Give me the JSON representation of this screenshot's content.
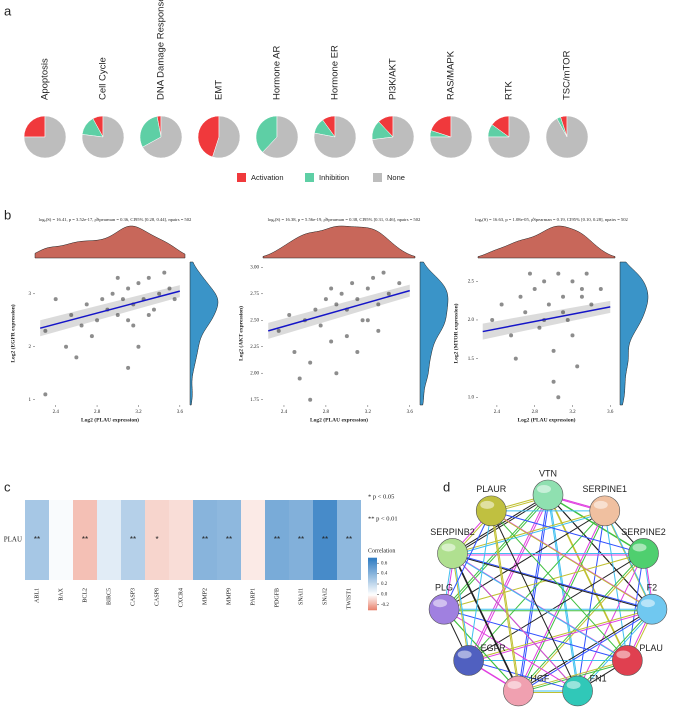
{
  "chart_data": [
    {
      "type": "pie",
      "panel_label": "a",
      "categories": [
        "Apoptosis",
        "Cell Cycle",
        "DNA Damage Response",
        "EMT",
        "Hormone AR",
        "Hormone ER",
        "PI3K/AKT",
        "RAS/MAPK",
        "RTK",
        "TSC/mTOR"
      ],
      "series": [
        {
          "name": "Activation",
          "color": "#f0393c",
          "values": [
            25,
            8,
            3,
            45,
            0,
            10,
            12,
            20,
            15,
            5
          ]
        },
        {
          "name": "Inhibition",
          "color": "#5ecfa5",
          "values": [
            0,
            15,
            30,
            0,
            38,
            12,
            15,
            5,
            10,
            3
          ]
        },
        {
          "name": "None",
          "color": "#bdbdbd",
          "values": [
            75,
            77,
            67,
            55,
            62,
            78,
            73,
            75,
            75,
            92
          ]
        }
      ]
    },
    {
      "type": "scatter",
      "panel_label": "b",
      "title": "logₑ(S) = 16.41, p = 3.52e-17, ρ̂Spearman = 0.36, CI95% [0.28, 0.44], npairs = 502",
      "xlabel": "Log2 (PLAU expression)",
      "ylabel": "Log2 (EGFR expression)",
      "x": [
        2.3,
        2.4,
        2.55,
        2.65,
        2.7,
        2.8,
        2.85,
        2.9,
        2.95,
        3.0,
        3.05,
        3.1,
        3.1,
        3.15,
        3.2,
        3.2,
        3.25,
        3.3,
        3.35,
        3.4,
        3.45,
        3.5,
        2.6,
        2.75,
        3.0,
        3.15,
        3.3,
        2.5,
        3.1,
        3.55,
        2.3
      ],
      "y": [
        2.3,
        2.9,
        2.6,
        2.4,
        2.8,
        2.5,
        2.9,
        2.7,
        3.0,
        2.6,
        2.9,
        3.1,
        2.5,
        2.8,
        3.2,
        2.0,
        2.9,
        3.3,
        2.7,
        3.0,
        3.4,
        3.1,
        1.8,
        2.2,
        3.3,
        2.4,
        2.6,
        2.0,
        1.6,
        2.9,
        1.1
      ],
      "xlim": [
        2.2,
        3.65
      ],
      "ylim": [
        0.9,
        3.6
      ],
      "xticks": [
        2.4,
        2.8,
        3.2,
        3.6
      ],
      "yticks": [
        1,
        2,
        3
      ],
      "fit": {
        "x": [
          2.25,
          3.6
        ],
        "y": [
          2.35,
          3.05
        ]
      },
      "point_color": "#303030",
      "fit_color": "#1414c8",
      "density_x_color": "#c8675a",
      "density_y_color": "#3a94c8"
    },
    {
      "type": "scatter",
      "title": "logₑ(S) = 16.38, p = 5.56e-19, ρ̂Spearman = 0.38, CI95% [0.31, 0.46], npairs = 502",
      "xlabel": "Log2 (PLAU expression)",
      "ylabel": "Log2 (AKT expression)",
      "x": [
        2.35,
        2.45,
        2.5,
        2.6,
        2.7,
        2.75,
        2.8,
        2.85,
        2.9,
        2.95,
        3.0,
        3.05,
        3.1,
        3.15,
        3.2,
        3.25,
        3.3,
        3.35,
        3.4,
        3.5,
        2.65,
        2.9,
        3.0,
        3.1,
        3.2,
        2.55,
        2.85,
        3.3,
        2.65
      ],
      "y": [
        2.4,
        2.55,
        2.2,
        2.5,
        2.6,
        2.45,
        2.7,
        2.3,
        2.65,
        2.75,
        2.6,
        2.85,
        2.7,
        2.5,
        2.8,
        2.9,
        2.65,
        2.95,
        2.75,
        2.85,
        2.1,
        2.0,
        2.35,
        2.2,
        2.5,
        1.95,
        2.8,
        2.4,
        1.75
      ],
      "xlim": [
        2.2,
        3.65
      ],
      "ylim": [
        1.7,
        3.05
      ],
      "xticks": [
        2.4,
        2.8,
        3.2,
        3.6
      ],
      "yticks": [
        1.75,
        {
          "value": 2,
          "label": "2.00"
        },
        2.25,
        {
          "value": 2.5,
          "label": "2.50"
        },
        2.75,
        {
          "value": 3,
          "label": "3.00"
        }
      ],
      "fit": {
        "x": [
          2.25,
          3.6
        ],
        "y": [
          2.4,
          2.78
        ]
      },
      "point_color": "#303030",
      "fit_color": "#1414c8",
      "density_x_color": "#c8675a",
      "density_y_color": "#3a94c8"
    },
    {
      "type": "scatter",
      "title": "logₑ(S) = 16.63, p = 1.08e-05, ρ̂Spearman = 0.19, CI95% [0.10, 0.28], npairs = 502",
      "xlabel": "Log2 (PLAU expression)",
      "ylabel": "Log2 (MTOR expression)",
      "x": [
        2.35,
        2.45,
        2.55,
        2.65,
        2.7,
        2.8,
        2.85,
        2.9,
        2.95,
        3.0,
        3.05,
        3.1,
        3.15,
        3.2,
        3.25,
        3.3,
        3.35,
        3.4,
        3.5,
        2.6,
        2.75,
        3.0,
        3.1,
        3.2,
        2.9,
        3.05,
        3.3
      ],
      "y": [
        2.0,
        2.2,
        1.8,
        2.3,
        2.1,
        2.4,
        1.9,
        2.5,
        2.2,
        1.6,
        2.6,
        2.3,
        2.0,
        2.5,
        1.4,
        2.4,
        2.6,
        2.2,
        2.4,
        1.5,
        2.6,
        1.2,
        2.1,
        1.8,
        2.0,
        1.0,
        2.3
      ],
      "xlim": [
        2.2,
        3.65
      ],
      "ylim": [
        0.9,
        2.75
      ],
      "xticks": [
        2.4,
        2.8,
        3.2,
        3.6
      ],
      "yticks": [
        {
          "value": 1,
          "label": "1.0"
        },
        1.5,
        {
          "value": 2,
          "label": "2.0"
        },
        2.5
      ],
      "fit": {
        "x": [
          2.25,
          3.6
        ],
        "y": [
          1.85,
          2.17
        ]
      },
      "point_color": "#303030",
      "fit_color": "#1414c8",
      "density_x_color": "#c8675a",
      "density_y_color": "#3a94c8"
    },
    {
      "type": "heatmap",
      "panel_label": "c",
      "rows": [
        "PLAU"
      ],
      "columns": [
        "ABL1",
        "BAX",
        "BCL2",
        "BIRC5",
        "CASP3",
        "CASP8",
        "CXCR4",
        "MMP2",
        "MMP9",
        "PARP1",
        "PDGFB",
        "SNAI1",
        "SNAI2",
        "TWIST1"
      ],
      "values": [
        [
          0.3,
          0.02,
          -0.15,
          0.1,
          0.25,
          -0.1,
          -0.08,
          0.4,
          0.38,
          -0.05,
          0.45,
          0.42,
          0.62,
          0.38
        ]
      ],
      "significance": [
        [
          "**",
          null,
          "**",
          null,
          "**",
          "*",
          null,
          "**",
          "**",
          null,
          "**",
          "**",
          "**",
          "**"
        ]
      ],
      "clim": [
        -0.3,
        0.7
      ],
      "colorbar_ticks": [
        0.6,
        0.4,
        0.2,
        {
          "value": 0,
          "label": "0.0"
        },
        -0.2
      ],
      "colorbar_title": "Correlation",
      "notes": [
        "* p < 0.05",
        "** p < 0.01"
      ],
      "low_color": "#e8806a",
      "high_color": "#2f7cc2"
    }
  ],
  "network": {
    "panel_label": "d",
    "nodes": [
      {
        "label": "VTN",
        "color": "#8fe0b0"
      },
      {
        "label": "SERPINE1",
        "color": "#f0c0a0"
      },
      {
        "label": "SERPINE2",
        "color": "#4fcf6f"
      },
      {
        "label": "F2",
        "color": "#70c8f0"
      },
      {
        "label": "PLAU",
        "color": "#e04050"
      },
      {
        "label": "FN1",
        "color": "#30c8b8"
      },
      {
        "label": "HGF",
        "color": "#f0a0b0"
      },
      {
        "label": "EGFR",
        "color": "#5060c0"
      },
      {
        "label": "PLG",
        "color": "#a080e0"
      },
      {
        "label": "SERPINB2",
        "color": "#b0e090"
      },
      {
        "label": "PLAUR",
        "color": "#c0c040"
      }
    ]
  }
}
